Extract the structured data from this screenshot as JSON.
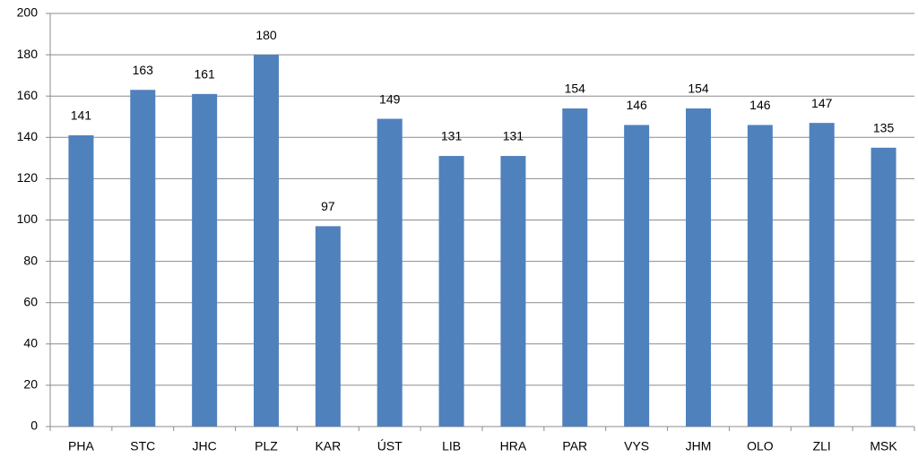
{
  "chart_data": {
    "type": "bar",
    "categories": [
      "PHA",
      "STC",
      "JHC",
      "PLZ",
      "KAR",
      "ÚST",
      "LIB",
      "HRA",
      "PAR",
      "VYS",
      "JHM",
      "OLO",
      "ZLI",
      "MSK"
    ],
    "values": [
      141,
      163,
      161,
      180,
      97,
      149,
      131,
      131,
      154,
      146,
      154,
      146,
      147,
      135
    ],
    "color": "#4f81bd",
    "ylim": [
      0,
      200
    ],
    "yticks": [
      0,
      20,
      40,
      60,
      80,
      100,
      120,
      140,
      160,
      180,
      200
    ],
    "grid": true
  }
}
